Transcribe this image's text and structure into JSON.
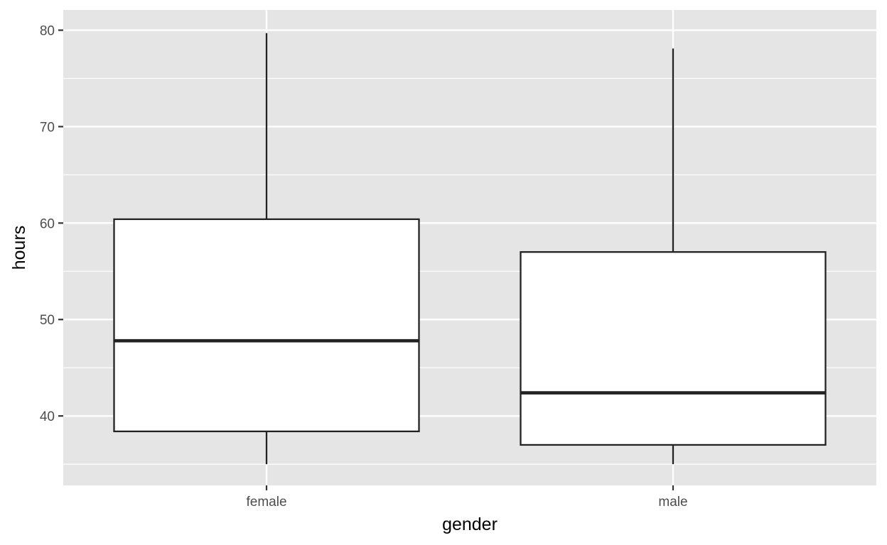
{
  "chart_data": {
    "type": "boxplot",
    "title": "",
    "xlabel": "gender",
    "ylabel": "hours",
    "ylim": [
      32.8,
      82.1
    ],
    "yticks": [
      40,
      50,
      60,
      70,
      80
    ],
    "y_minor_ticks": [
      35,
      45,
      55,
      65,
      75
    ],
    "grid": true,
    "categories": [
      "female",
      "male"
    ],
    "boxes": [
      {
        "category": "female",
        "whisker_low": 35,
        "q1": 38.4,
        "median": 47.8,
        "q3": 60.4,
        "whisker_high": 79.7
      },
      {
        "category": "male",
        "whisker_low": 35,
        "q1": 37.0,
        "median": 42.4,
        "q3": 57.0,
        "whisker_high": 78.1
      }
    ],
    "colors": {
      "panel_background": "#e5e5e5",
      "grid": "#ffffff",
      "box_fill": "#ffffff",
      "box_line": "#222222",
      "tick_text": "#4d4d4d",
      "axis_title": "#000000"
    }
  }
}
